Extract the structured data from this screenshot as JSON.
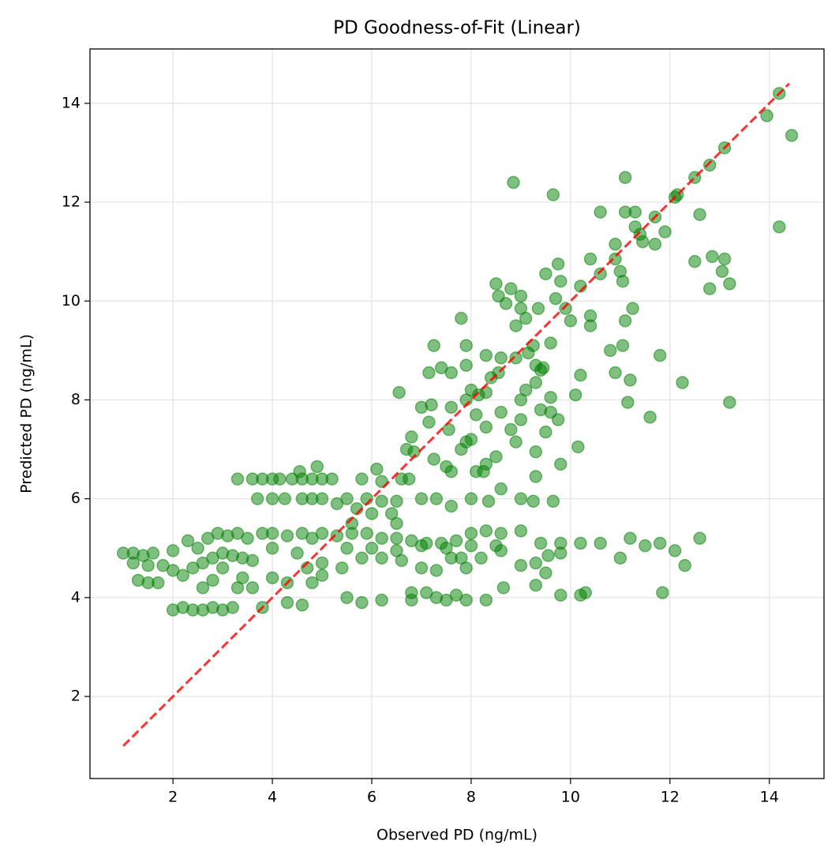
{
  "chart_data": {
    "type": "scatter",
    "title": "PD Goodness-of-Fit (Linear)",
    "x_label": "Observed PD (ng/mL)",
    "y_label": "Predicted PD (ng/mL)",
    "xlim": [
      0.33,
      15.1
    ],
    "ylim": [
      0.34,
      15.1
    ],
    "xticks": [
      2,
      4,
      6,
      8,
      10,
      12,
      14
    ],
    "yticks": [
      2,
      4,
      6,
      8,
      10,
      12,
      14
    ],
    "grid": true,
    "color": "#008000",
    "x": [
      14.2,
      13.95,
      14.45,
      14.2,
      13.1,
      12.8,
      12.5,
      12.1,
      12.15,
      11.1,
      8.85,
      9.65,
      10.6,
      11.1,
      11.3,
      11.7,
      11.3,
      11.4,
      11.9,
      11.45,
      11.7,
      12.6,
      10.9,
      12.5,
      12.85,
      13.1,
      13.05,
      13.2,
      12.8,
      10.9,
      11.0,
      10.4,
      10.6,
      11.05,
      9.75,
      9.8,
      9.5,
      10.2,
      8.5,
      8.8,
      9.0,
      8.55,
      9.7,
      8.7,
      9.0,
      9.35,
      9.9,
      10.0,
      10.4,
      10.4,
      11.1,
      9.1,
      7.8,
      8.9,
      11.25,
      7.25,
      7.9,
      8.3,
      8.6,
      9.15,
      9.6,
      9.25,
      10.8,
      11.05,
      11.8,
      9.3,
      9.45,
      8.9,
      7.6,
      7.15,
      7.4,
      7.9,
      10.2,
      10.9,
      8.55,
      8.4,
      9.4,
      12.25,
      11.2,
      9.3,
      6.55,
      8.0,
      8.15,
      8.3,
      7.9,
      9.1,
      9.0,
      9.6,
      10.1,
      13.2,
      11.15,
      11.6,
      7.0,
      7.2,
      7.6,
      8.1,
      8.6,
      9.0,
      9.4,
      9.6,
      9.75,
      8.8,
      9.5,
      7.15,
      7.55,
      8.3,
      6.8,
      6.7,
      6.85,
      7.8,
      7.9,
      8.0,
      8.9,
      9.3,
      10.15,
      7.25,
      7.5,
      8.3,
      8.5,
      8.25,
      8.1,
      9.8,
      7.6,
      9.3,
      6.6,
      6.75,
      8.0,
      8.6,
      9.0,
      9.25,
      9.65,
      8.35,
      7.6,
      7.0,
      7.3,
      3.3,
      3.6,
      3.8,
      4.0,
      4.15,
      4.4,
      4.6,
      4.8,
      5.0,
      5.2,
      4.55,
      4.9,
      5.8,
      6.2,
      6.1,
      3.7,
      4.0,
      4.25,
      4.6,
      4.8,
      5.0,
      5.5,
      5.9,
      6.2,
      6.5,
      5.3,
      5.7,
      6.0,
      6.4,
      5.6,
      6.5,
      1.0,
      1.2,
      1.4,
      1.6,
      1.2,
      1.5,
      1.8,
      2.0,
      2.2,
      2.4,
      2.6,
      2.8,
      3.0,
      3.2,
      3.4,
      3.6,
      1.3,
      1.5,
      1.7,
      2.0,
      2.3,
      2.5,
      2.7,
      2.9,
      3.1,
      3.3,
      3.5,
      3.8,
      4.0,
      4.3,
      4.6,
      4.8,
      5.0,
      5.3,
      5.6,
      5.9,
      6.2,
      6.5,
      6.8,
      7.1,
      7.4,
      7.7,
      8.0,
      8.3,
      8.6,
      9.0,
      9.4,
      9.8,
      10.2,
      10.6,
      11.2,
      11.5,
      11.8,
      12.1,
      12.6,
      3.0,
      3.4,
      2.6,
      2.8,
      3.3,
      3.6,
      4.0,
      4.3,
      4.7,
      5.0,
      5.4,
      5.8,
      6.2,
      6.6,
      7.0,
      7.3,
      7.6,
      7.9,
      8.2,
      8.6,
      9.0,
      9.3,
      9.8,
      11.0,
      12.3,
      4.0,
      4.5,
      5.5,
      6.0,
      6.5,
      7.0,
      7.5,
      8.0,
      8.5,
      2.0,
      2.2,
      2.4,
      2.6,
      2.8,
      3.0,
      3.2,
      3.8,
      4.3,
      4.6,
      5.0,
      5.5,
      5.8,
      6.2,
      6.8,
      6.8,
      7.1,
      7.3,
      7.5,
      7.7,
      7.9,
      8.3,
      8.65,
      9.8,
      10.2,
      10.3,
      11.85,
      9.3,
      9.5,
      4.8,
      7.8,
      9.55
    ],
    "values": [
      14.2,
      13.75,
      13.35,
      11.5,
      13.1,
      12.75,
      12.5,
      12.1,
      12.15,
      12.5,
      12.4,
      12.15,
      11.8,
      11.8,
      11.8,
      11.7,
      11.5,
      11.35,
      11.4,
      11.2,
      11.15,
      11.75,
      11.15,
      10.8,
      10.9,
      10.85,
      10.6,
      10.35,
      10.25,
      10.85,
      10.6,
      10.85,
      10.55,
      10.4,
      10.75,
      10.4,
      10.55,
      10.3,
      10.35,
      10.25,
      10.1,
      10.1,
      10.05,
      9.95,
      9.85,
      9.85,
      9.85,
      9.6,
      9.7,
      9.5,
      9.6,
      9.65,
      9.65,
      9.5,
      9.85,
      9.1,
      9.1,
      8.9,
      8.85,
      8.95,
      9.15,
      9.1,
      9.0,
      9.1,
      8.9,
      8.7,
      8.65,
      8.85,
      8.55,
      8.55,
      8.65,
      8.7,
      8.5,
      8.55,
      8.55,
      8.45,
      8.6,
      8.35,
      8.4,
      8.35,
      8.15,
      8.2,
      8.1,
      8.15,
      8.0,
      8.2,
      8.0,
      8.05,
      8.1,
      7.95,
      7.95,
      7.65,
      7.85,
      7.9,
      7.85,
      7.7,
      7.75,
      7.6,
      7.8,
      7.75,
      7.6,
      7.4,
      7.35,
      7.55,
      7.4,
      7.45,
      7.25,
      7.0,
      6.95,
      7.0,
      7.15,
      7.2,
      7.15,
      6.95,
      7.05,
      6.8,
      6.65,
      6.7,
      6.85,
      6.55,
      6.55,
      6.7,
      6.55,
      6.45,
      6.4,
      6.4,
      6.0,
      6.2,
      6.0,
      5.95,
      5.95,
      5.95,
      5.85,
      6.0,
      6.0,
      6.4,
      6.4,
      6.4,
      6.4,
      6.4,
      6.4,
      6.4,
      6.4,
      6.4,
      6.4,
      6.55,
      6.65,
      6.4,
      6.35,
      6.6,
      6.0,
      6.0,
      6.0,
      6.0,
      6.0,
      6.0,
      6.0,
      6.0,
      5.95,
      5.95,
      5.9,
      5.8,
      5.7,
      5.7,
      5.5,
      5.5,
      4.9,
      4.9,
      4.85,
      4.9,
      4.7,
      4.65,
      4.65,
      4.55,
      4.45,
      4.6,
      4.7,
      4.8,
      4.9,
      4.85,
      4.8,
      4.75,
      4.35,
      4.3,
      4.3,
      4.95,
      5.15,
      5.0,
      5.2,
      5.3,
      5.25,
      5.3,
      5.2,
      5.3,
      5.3,
      5.25,
      5.3,
      5.2,
      5.3,
      5.25,
      5.3,
      5.3,
      5.2,
      5.2,
      5.15,
      5.1,
      5.1,
      5.15,
      5.3,
      5.35,
      5.3,
      5.35,
      5.1,
      5.1,
      5.1,
      5.1,
      5.2,
      5.05,
      5.1,
      4.95,
      5.2,
      4.6,
      4.4,
      4.2,
      4.35,
      4.2,
      4.2,
      4.4,
      4.3,
      4.6,
      4.7,
      4.6,
      4.8,
      4.8,
      4.75,
      4.6,
      4.55,
      4.8,
      4.6,
      4.8,
      4.95,
      4.65,
      4.7,
      4.9,
      4.8,
      4.65,
      5.0,
      4.9,
      5.0,
      5.0,
      4.95,
      5.05,
      5.0,
      5.05,
      5.05,
      3.75,
      3.8,
      3.75,
      3.75,
      3.8,
      3.75,
      3.8,
      3.8,
      3.9,
      3.85,
      4.45,
      4.0,
      3.9,
      3.95,
      3.95,
      4.1,
      4.1,
      4.0,
      3.95,
      4.05,
      3.95,
      3.95,
      4.2,
      4.05,
      4.05,
      4.1,
      4.1,
      4.25,
      4.5,
      4.3,
      4.8,
      4.85
    ],
    "identity_line": {
      "x": [
        1,
        14.4
      ],
      "values": [
        1,
        14.4
      ],
      "color": "#ff0000"
    }
  }
}
